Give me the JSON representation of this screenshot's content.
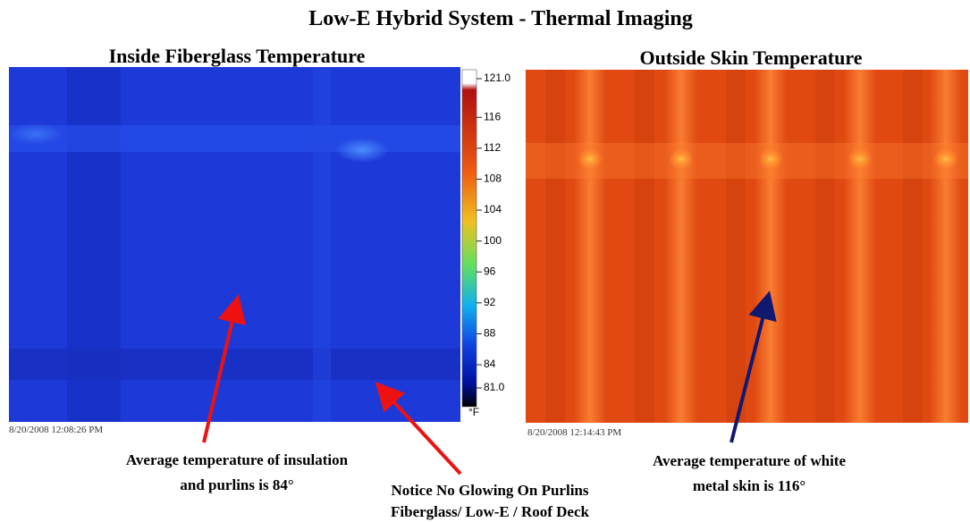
{
  "title": "Low-E Hybrid System - Thermal Imaging",
  "left_panel": {
    "title": "Inside Fiberglass Temperature",
    "timestamp": "8/20/2008 12:08:26 PM",
    "annotations": [
      [
        "Average temperature of insulation",
        "and purlins is 84°"
      ],
      [
        "Notice No Glowing On Purlins",
        "Fiberglass/ Low-E / Roof Deck"
      ]
    ]
  },
  "right_panel": {
    "title": "Outside Skin Temperature",
    "timestamp": "8/20/2008 12:14:43 PM",
    "annotations": [
      [
        "Average temperature of white",
        "metal skin is 116°"
      ]
    ]
  },
  "scale": {
    "ticks": [
      {
        "value": 121,
        "label": "121.0"
      },
      116,
      112,
      108,
      104,
      100,
      96,
      92,
      88,
      84,
      {
        "value": 81,
        "label": "81.0"
      }
    ],
    "unit": "°F"
  }
}
